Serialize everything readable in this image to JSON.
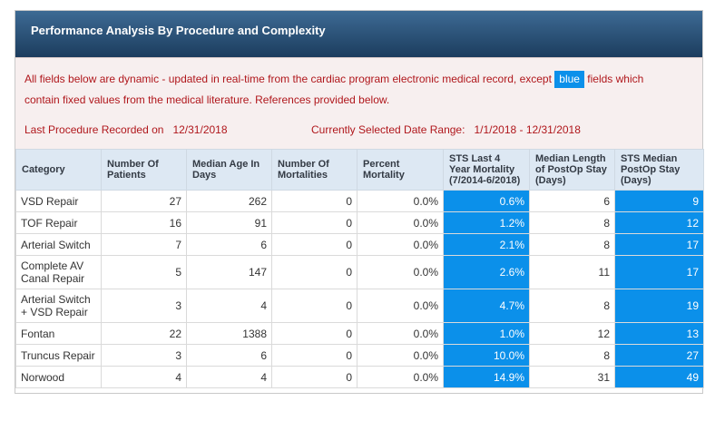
{
  "panel": {
    "title": "Performance Analysis By Procedure and Complexity"
  },
  "notice": {
    "text_before": "All fields below are dynamic - updated in real-time from the cardiac program electronic medical record, except",
    "blue_label": "blue",
    "text_after_line1": "fields which",
    "text_line2": "contain fixed values from the medical literature. References provided below.",
    "last_procedure_label": "Last Procedure Recorded on",
    "last_procedure_date": "12/31/2018",
    "date_range_label": "Currently Selected Date Range:",
    "date_range_value": "1/1/2018 - 12/31/2018"
  },
  "table": {
    "headers": [
      "Category",
      "Number Of Patients",
      "Median Age In Days",
      "Number Of Mortalities",
      "Percent Mortality",
      "STS Last 4 Year Mortality (7/2014-6/2018)",
      "Median Length of PostOp Stay (Days)",
      "STS Median PostOp Stay (Days)"
    ],
    "rows": [
      [
        "VSD Repair",
        "27",
        "262",
        "0",
        "0.0%",
        "0.6%",
        "6",
        "9"
      ],
      [
        "TOF Repair",
        "16",
        "91",
        "0",
        "0.0%",
        "1.2%",
        "8",
        "12"
      ],
      [
        "Arterial Switch",
        "7",
        "6",
        "0",
        "0.0%",
        "2.1%",
        "8",
        "17"
      ],
      [
        "Complete AV Canal Repair",
        "5",
        "147",
        "0",
        "0.0%",
        "2.6%",
        "11",
        "17"
      ],
      [
        "Arterial Switch + VSD Repair",
        "3",
        "4",
        "0",
        "0.0%",
        "4.7%",
        "8",
        "19"
      ],
      [
        "Fontan",
        "22",
        "1388",
        "0",
        "0.0%",
        "1.0%",
        "12",
        "13"
      ],
      [
        "Truncus Repair",
        "3",
        "6",
        "0",
        "0.0%",
        "10.0%",
        "8",
        "27"
      ],
      [
        "Norwood",
        "4",
        "4",
        "0",
        "0.0%",
        "14.9%",
        "31",
        "49"
      ]
    ]
  },
  "colors": {
    "fixed_value_blue": "#0b90ea",
    "header_bar": "#1c3d5e",
    "notice_text": "#b0171c"
  }
}
